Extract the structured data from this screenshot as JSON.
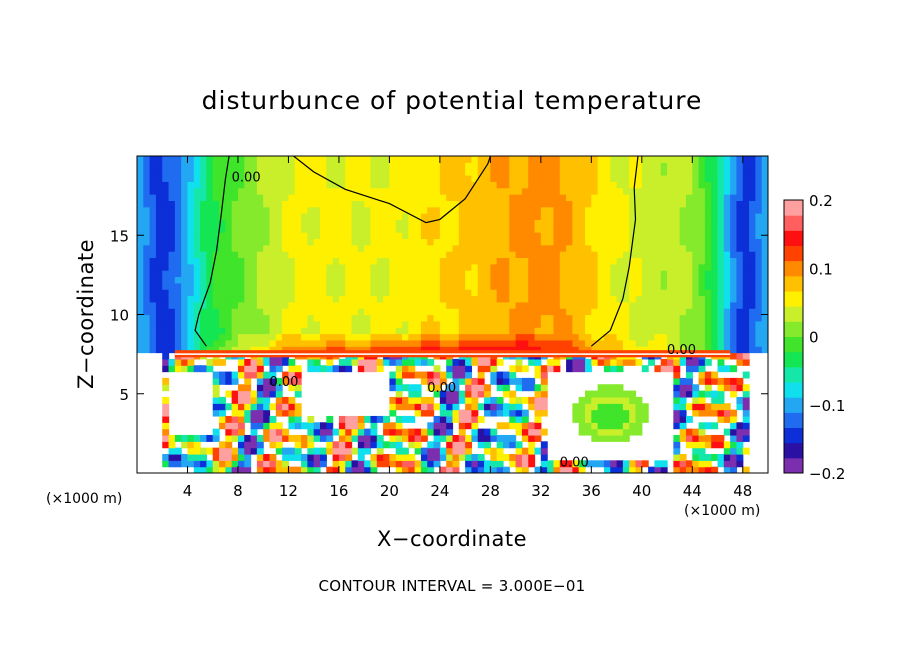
{
  "chart_data": {
    "type": "heatmap",
    "title": "disturbunce of potential temperature",
    "xlabel": "X−coordinate",
    "ylabel": "Z−coordinate",
    "x_unit_label": "(×1000 m)",
    "x_unit_label_right": "(×1000 m)",
    "xlim": [
      0,
      50
    ],
    "ylim": [
      0,
      20
    ],
    "x_ticks": [
      4,
      8,
      12,
      16,
      20,
      24,
      28,
      32,
      36,
      40,
      44,
      48
    ],
    "y_ticks": [
      5,
      10,
      15
    ],
    "colorbar": {
      "range": [
        -0.2,
        0.2
      ],
      "tick_labels": [
        "0.2",
        "0.1",
        "0",
        "−0.1",
        "−0.2"
      ],
      "tick_values": [
        0.2,
        0.1,
        0,
        -0.1,
        -0.2
      ],
      "colors": [
        "#7b2fae",
        "#2a11a3",
        "#0c2fd8",
        "#1f6cf0",
        "#23a7f3",
        "#10e0ee",
        "#14e7a7",
        "#14e552",
        "#3fe42b",
        "#86ea2c",
        "#c9ef2b",
        "#fff000",
        "#ffc000",
        "#ff8a00",
        "#ff4200",
        "#ff1010",
        "#ff5f5f",
        "#ffa0a0"
      ]
    },
    "contour_labels": [
      "0.00",
      "0.00",
      "0.00",
      "0.00",
      "0.00"
    ],
    "contour_interval": "CONTOUR INTERVAL = 3.000E−01"
  }
}
